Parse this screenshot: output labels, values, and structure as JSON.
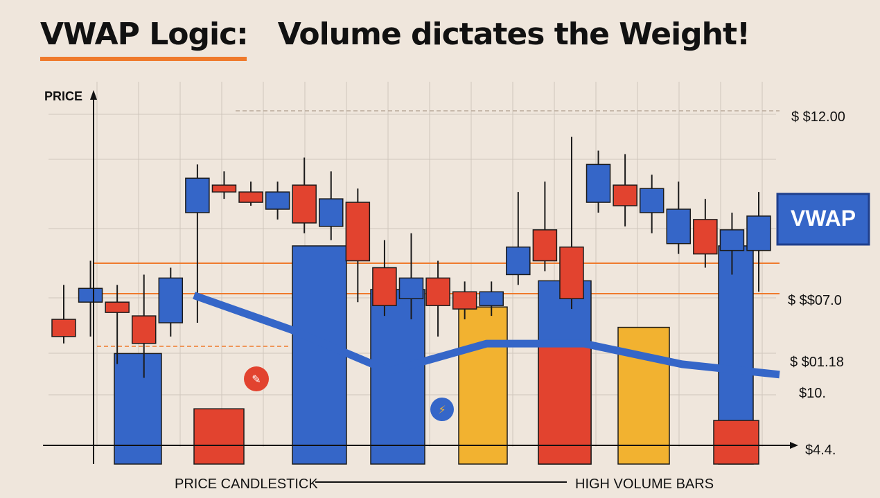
{
  "title": "VWAP Logic:   Volume dictates the Weight!",
  "colors": {
    "background": "#efe6dc",
    "red": "#e2432f",
    "blue": "#3566c8",
    "yellow": "#f2b230",
    "orange": "#ef7a2c",
    "green": "#5aa63a",
    "vwap_line": "#3566c8"
  },
  "chart_data": {
    "type": "candlestick",
    "y_axis_label": "PRICE",
    "price_labels": [
      "$ $12.00",
      "$ $$07.0",
      "$ $01.18",
      "$10.",
      "$4.4."
    ],
    "vwap_label": "VWAP",
    "legend": {
      "left": "PRICE CANDLESTICK",
      "right": "HIGH VOLUME BARS"
    },
    "grid": true,
    "candles": [
      {
        "open": 30,
        "close": 35,
        "high": 45,
        "low": 28,
        "color": "red"
      },
      {
        "open": 40,
        "close": 44,
        "high": 52,
        "low": 30,
        "color": "blue"
      },
      {
        "open": 40,
        "close": 37,
        "high": 45,
        "low": 22,
        "color": "red"
      },
      {
        "open": 36,
        "close": 28,
        "high": 48,
        "low": 18,
        "color": "red"
      },
      {
        "open": 34,
        "close": 47,
        "high": 50,
        "low": 30,
        "color": "blue"
      },
      {
        "open": 66,
        "close": 76,
        "high": 80,
        "low": 34,
        "color": "blue"
      },
      {
        "open": 74,
        "close": 72,
        "high": 78,
        "low": 70,
        "color": "red"
      },
      {
        "open": 72,
        "close": 69,
        "high": 75,
        "low": 68,
        "color": "red"
      },
      {
        "open": 67,
        "close": 72,
        "high": 75,
        "low": 64,
        "color": "blue"
      },
      {
        "open": 74,
        "close": 63,
        "high": 82,
        "low": 60,
        "color": "red"
      },
      {
        "open": 62,
        "close": 70,
        "high": 78,
        "low": 58,
        "color": "blue"
      },
      {
        "open": 69,
        "close": 52,
        "high": 73,
        "low": 40,
        "color": "red"
      },
      {
        "open": 50,
        "close": 39,
        "high": 58,
        "low": 36,
        "color": "red"
      },
      {
        "open": 41,
        "close": 47,
        "high": 60,
        "low": 35,
        "color": "blue"
      },
      {
        "open": 47,
        "close": 39,
        "high": 52,
        "low": 30,
        "color": "red"
      },
      {
        "open": 43,
        "close": 38,
        "high": 46,
        "low": 35,
        "color": "red"
      },
      {
        "open": 39,
        "close": 43,
        "high": 46,
        "low": 36,
        "color": "blue"
      },
      {
        "open": 48,
        "close": 56,
        "high": 72,
        "low": 45,
        "color": "blue"
      },
      {
        "open": 61,
        "close": 52,
        "high": 75,
        "low": 49,
        "color": "red"
      },
      {
        "open": 56,
        "close": 41,
        "high": 88,
        "low": 38,
        "color": "red"
      },
      {
        "open": 69,
        "close": 80,
        "high": 84,
        "low": 66,
        "color": "blue"
      },
      {
        "open": 74,
        "close": 68,
        "high": 83,
        "low": 62,
        "color": "red"
      },
      {
        "open": 73,
        "close": 66,
        "high": 77,
        "low": 60,
        "color": "blue"
      },
      {
        "open": 67,
        "close": 57,
        "high": 75,
        "low": 54,
        "color": "blue"
      },
      {
        "open": 64,
        "close": 54,
        "high": 70,
        "low": 50,
        "color": "red"
      },
      {
        "open": 61,
        "close": 55,
        "high": 66,
        "low": 48,
        "color": "blue"
      },
      {
        "open": 55,
        "close": 65,
        "high": 72,
        "low": 43,
        "color": "blue"
      }
    ],
    "volume": [
      {
        "value": 38,
        "color": "blue"
      },
      {
        "value": 19,
        "color": "red"
      },
      {
        "value": 75,
        "color": "blue"
      },
      {
        "value": 60,
        "color": "blue"
      },
      {
        "value": 54,
        "color": "yellow"
      },
      {
        "value": 63,
        "color": "blue"
      },
      {
        "value": 42,
        "color": "red"
      },
      {
        "value": 47,
        "color": "yellow"
      },
      {
        "value": 75,
        "color": "blue"
      },
      {
        "value": 15,
        "color": "red"
      }
    ],
    "vwap": [
      50,
      40,
      28,
      36,
      36,
      30,
      27
    ]
  }
}
